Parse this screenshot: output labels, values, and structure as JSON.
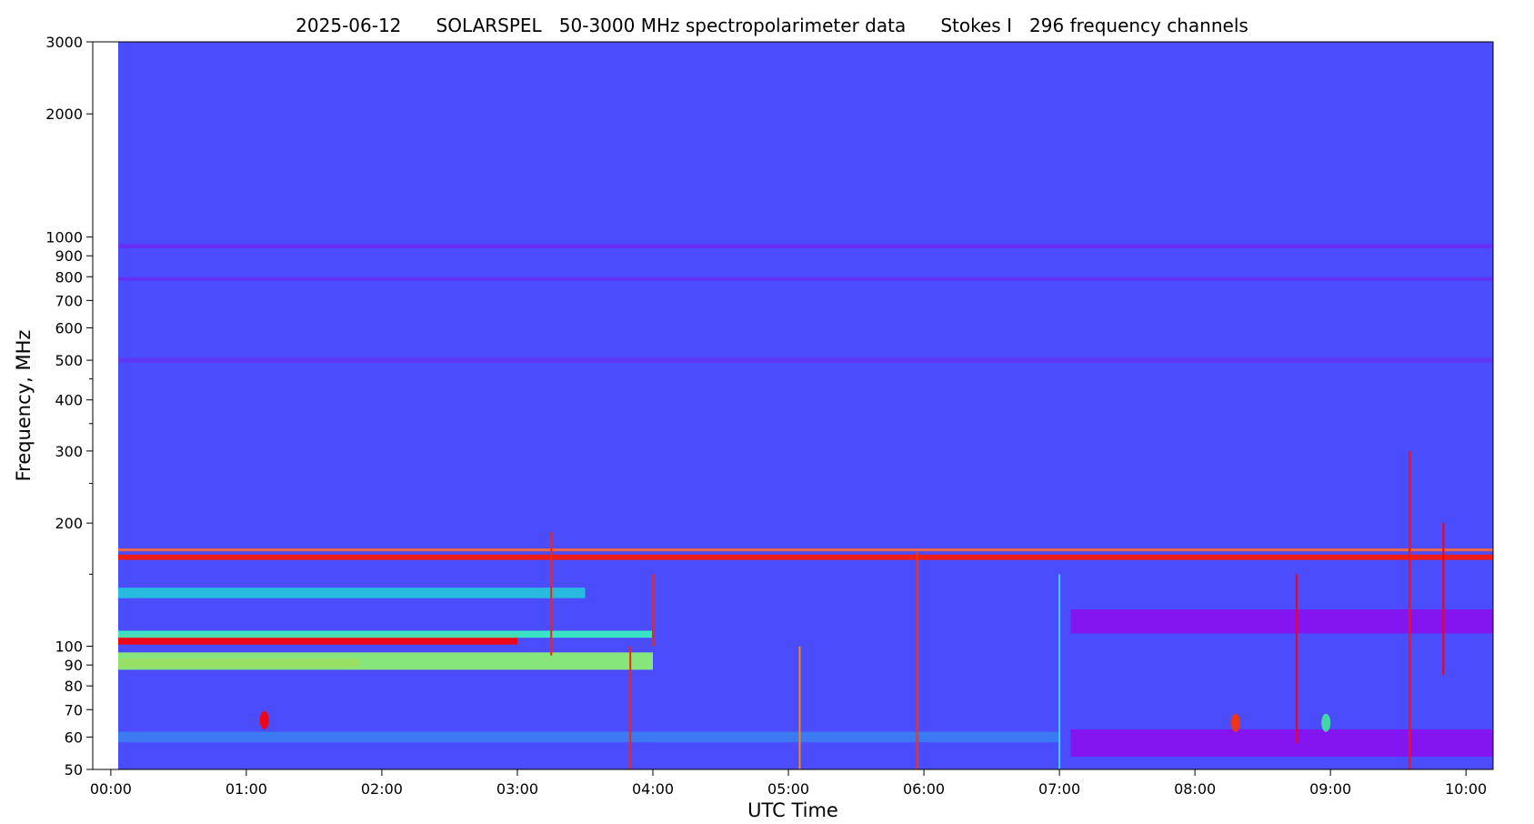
{
  "chart_data": {
    "type": "heatmap",
    "title": "2025-06-12      SOLARSPEL   50-3000 MHz spectropolarimeter data      Stokes I   296 frequency channels",
    "xlabel": "UTC Time",
    "ylabel": "Frequency, MHz",
    "y_scale": "log",
    "ylim": [
      50,
      3000
    ],
    "xlim": [
      "23:52",
      "10:12"
    ],
    "data_start": "00:00",
    "x_ticks": [
      "00:00",
      "01:00",
      "02:00",
      "03:00",
      "04:00",
      "05:00",
      "06:00",
      "07:00",
      "08:00",
      "09:00",
      "10:00"
    ],
    "y_ticks": [
      50,
      60,
      70,
      80,
      90,
      100,
      200,
      300,
      400,
      500,
      600,
      700,
      800,
      900,
      1000,
      2000,
      3000
    ],
    "y_tick_labels": [
      "50",
      "60",
      "70",
      "80",
      "90",
      "100",
      "200",
      "300",
      "400",
      "500",
      "600",
      "700",
      "800",
      "900",
      "1000",
      "2000",
      "3000"
    ],
    "colormap": "rainbow",
    "colors": {
      "background_level": "#4b4cfb",
      "low": "#7a18f4",
      "mid": "#1ba0f0",
      "high": "#ff0000",
      "plot_frame": "#000000"
    },
    "features": [
      {
        "kind": "band",
        "label": "RFI ~950 MHz",
        "freq": 950,
        "t0": "00:00",
        "t1": "10:12",
        "color": "#6a2cf5",
        "width": 1.012
      },
      {
        "kind": "band",
        "label": "RFI ~790 MHz",
        "freq": 790,
        "t0": "00:00",
        "t1": "10:12",
        "color": "#6a2cf5",
        "width": 1.01
      },
      {
        "kind": "band",
        "label": "RFI ~500 MHz",
        "freq": 500,
        "t0": "00:00",
        "t1": "10:12",
        "color": "#6236f5",
        "width": 1.015
      },
      {
        "kind": "band",
        "label": "RFI ~165 MHz",
        "freq": 165,
        "t0": "00:00",
        "t1": "10:12",
        "color": "#ff1a00",
        "width": 1.015
      },
      {
        "kind": "band",
        "label": "RFI ~172 MHz",
        "freq": 172,
        "t0": "00:00",
        "t1": "10:12",
        "color": "#ff6a3a",
        "width": 1.008
      },
      {
        "kind": "band",
        "label": "FM band upper",
        "freq": 104,
        "t0": "00:00",
        "t1": "03:00",
        "color": "#ff0000",
        "width": 1.03
      },
      {
        "kind": "band",
        "label": "FM band glow",
        "freq": 107,
        "t0": "00:00",
        "t1": "04:00",
        "color": "#39f3c0",
        "width": 1.02
      },
      {
        "kind": "band",
        "label": "FM band lower",
        "freq": 91,
        "t0": "00:00",
        "t1": "01:50",
        "color": "#ff0000",
        "width": 1.025
      },
      {
        "kind": "band",
        "label": "FM band lower glow",
        "freq": 92,
        "t0": "00:00",
        "t1": "04:00",
        "color": "#8df76e",
        "width": 1.05
      },
      {
        "kind": "band",
        "label": "135 MHz band",
        "freq": 135,
        "t0": "00:00",
        "t1": "03:30",
        "color": "#25c6dc",
        "width": 1.03
      },
      {
        "kind": "band",
        "label": "low band",
        "freq": 60,
        "t0": "00:00",
        "t1": "07:00",
        "color": "#3a7ff2",
        "width": 1.03
      },
      {
        "kind": "band",
        "label": "late purple",
        "freq": 115,
        "t0": "07:05",
        "t1": "10:12",
        "color": "#8a10ee",
        "width": 1.07
      },
      {
        "kind": "band",
        "label": "late purple low",
        "freq": 58,
        "t0": "07:05",
        "t1": "10:12",
        "color": "#8a10ee",
        "width": 1.08
      },
      {
        "kind": "spike",
        "time": "03:15",
        "f0": 95,
        "f1": 190,
        "color": "#ff2200"
      },
      {
        "kind": "spike",
        "time": "03:50",
        "f0": 50,
        "f1": 100,
        "color": "#ff2200"
      },
      {
        "kind": "spike",
        "time": "04:00",
        "f0": 100,
        "f1": 150,
        "color": "#ff2200"
      },
      {
        "kind": "spike",
        "time": "05:05",
        "f0": 50,
        "f1": 100,
        "color": "#ff8800"
      },
      {
        "kind": "spike",
        "time": "05:57",
        "f0": 50,
        "f1": 170,
        "color": "#ff3300"
      },
      {
        "kind": "spike",
        "time": "07:00",
        "f0": 50,
        "f1": 150,
        "color": "#3ad0f0"
      },
      {
        "kind": "spike",
        "time": "08:45",
        "f0": 58,
        "f1": 150,
        "color": "#ff0000"
      },
      {
        "kind": "spike",
        "time": "09:35",
        "f0": 50,
        "f1": 300,
        "color": "#ff1100"
      },
      {
        "kind": "spike",
        "time": "09:50",
        "f0": 85,
        "f1": 200,
        "color": "#ff0000"
      },
      {
        "kind": "blob",
        "time": "01:08",
        "freq": 66,
        "color": "#ff0000"
      },
      {
        "kind": "blob",
        "time": "08:18",
        "freq": 65,
        "color": "#ff3300"
      },
      {
        "kind": "blob",
        "time": "08:58",
        "freq": 65,
        "color": "#44e4a0"
      }
    ]
  }
}
